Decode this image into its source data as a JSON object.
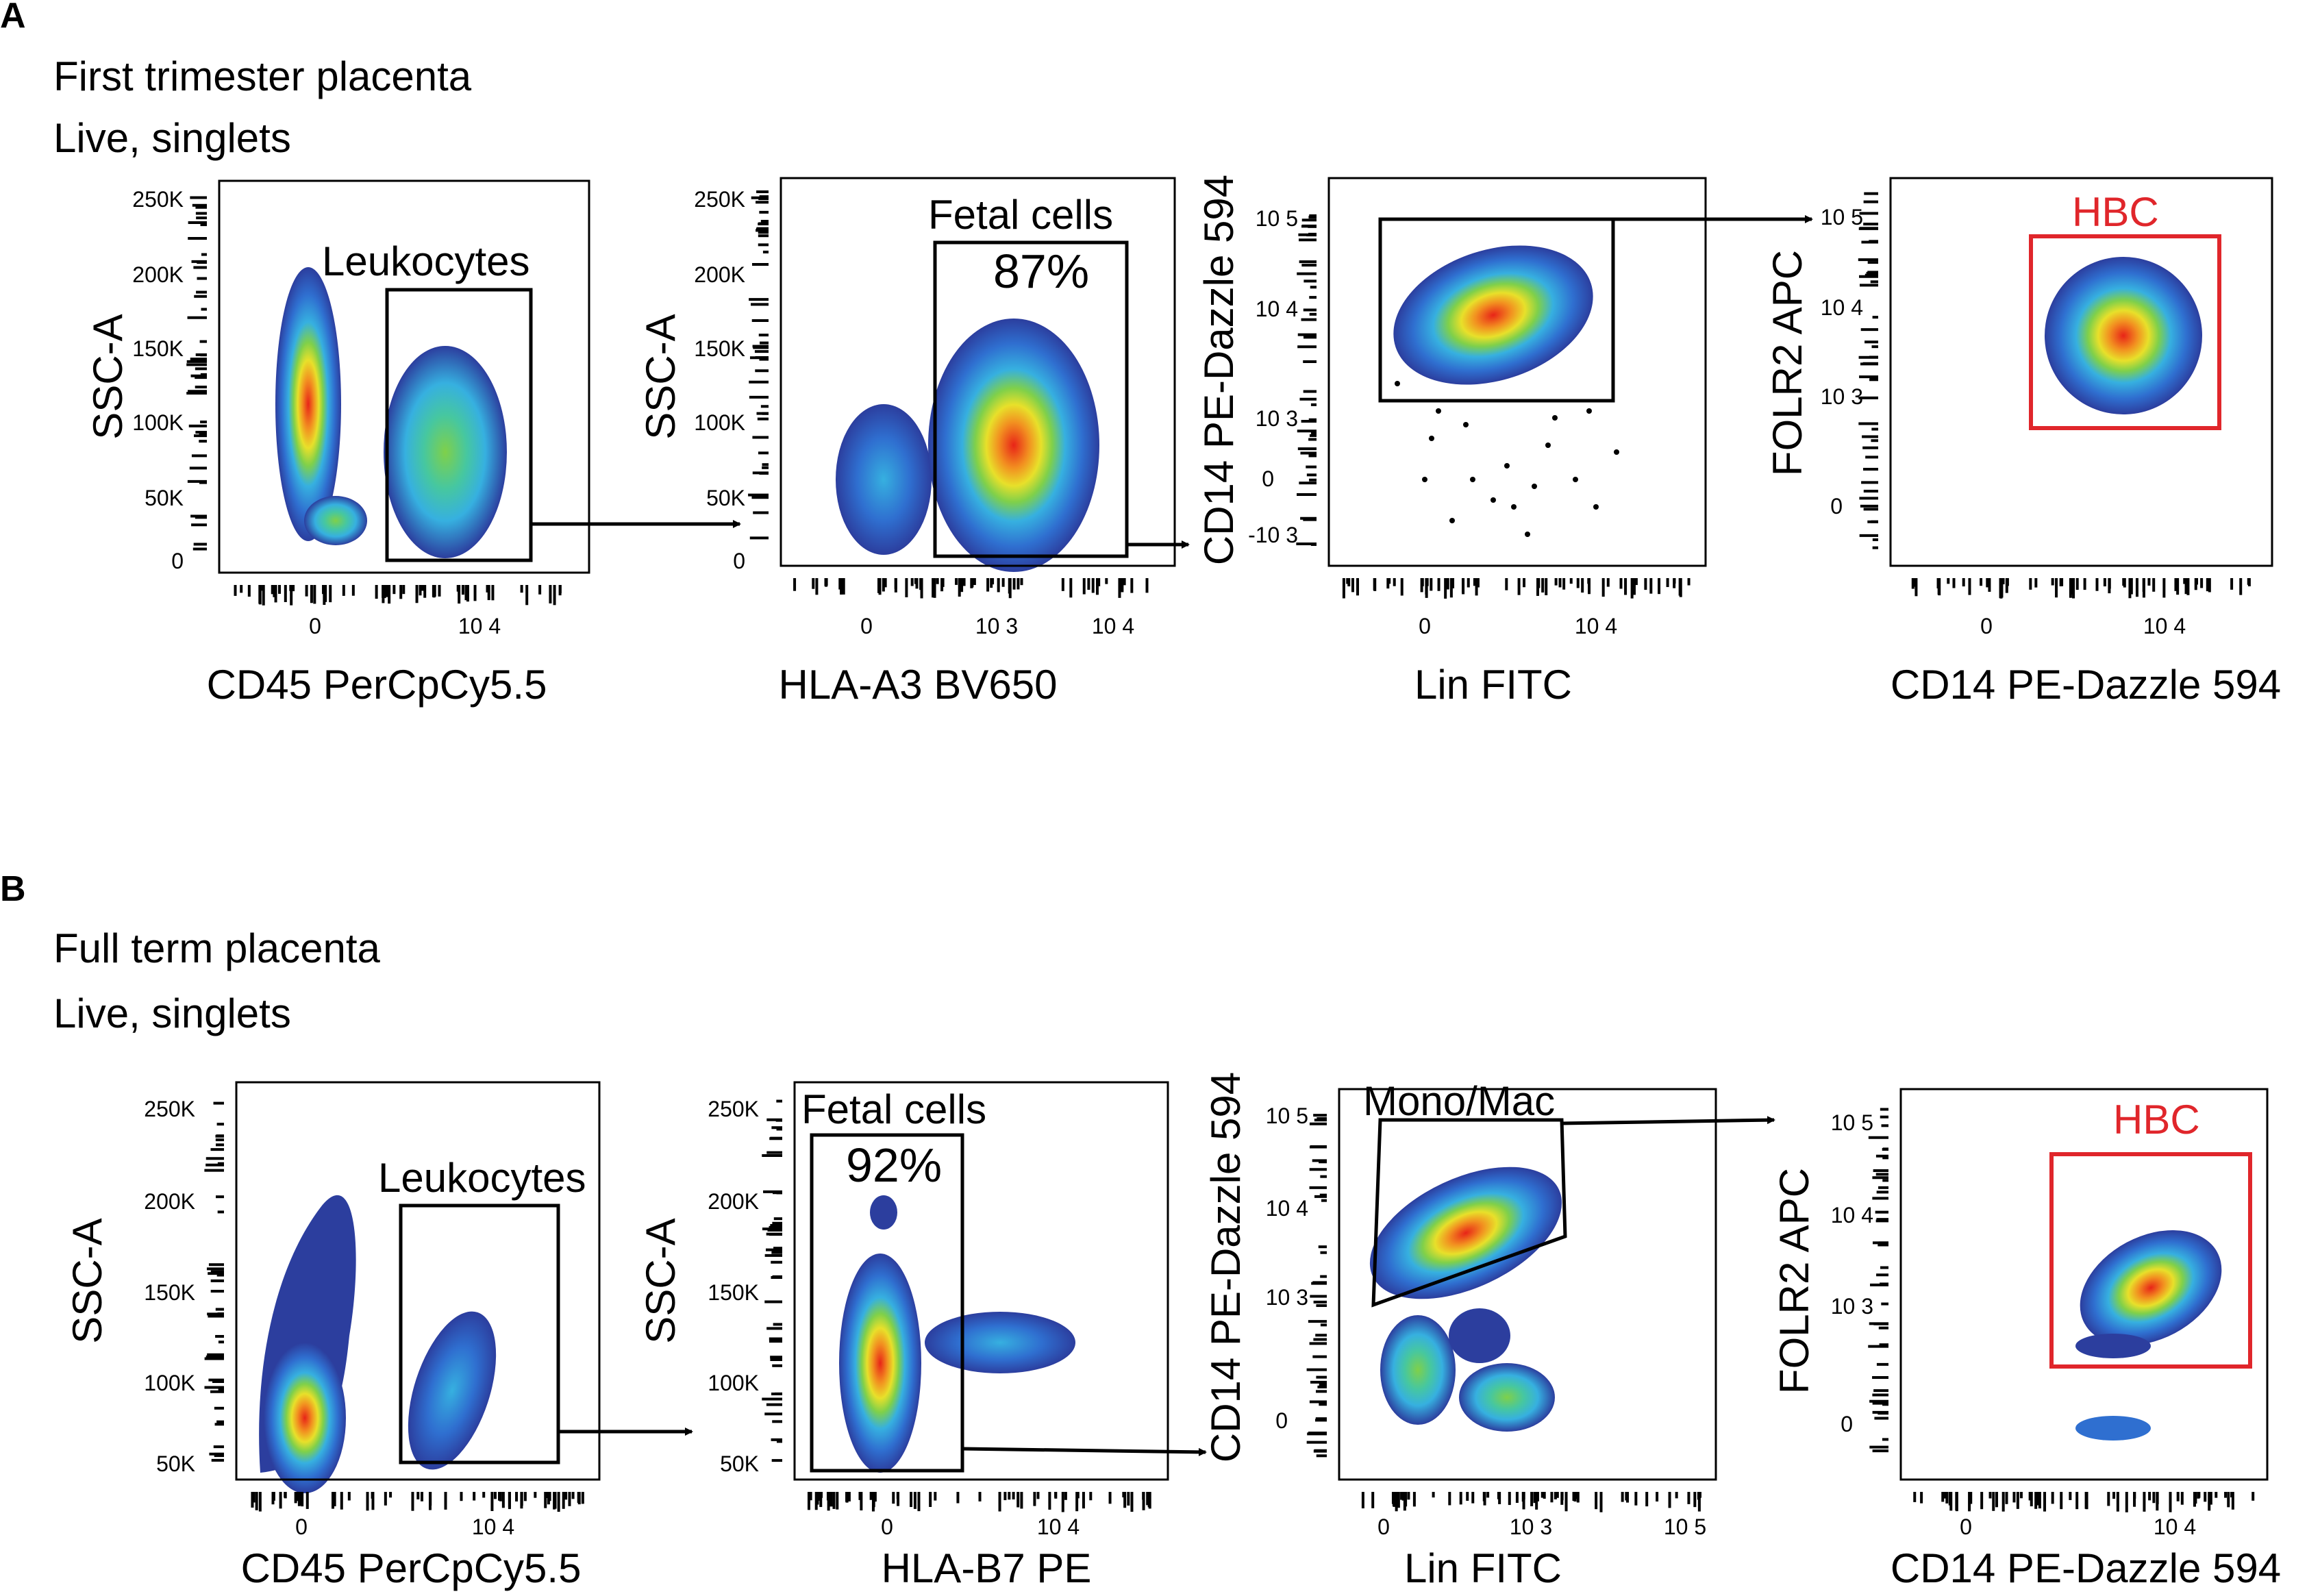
{
  "panel_a": {
    "letter": "A",
    "title_line1": "First trimester placenta",
    "title_line2": "Live, singlets",
    "plots": [
      {
        "ylabel": "SSC-A",
        "xlabel": "CD45 PerCpCy5.5",
        "yticks": [
          "250K",
          "200K",
          "150K",
          "100K",
          "50K",
          "0"
        ],
        "xticks": [
          "0",
          "10 4"
        ],
        "gate_label": "Leukocytes",
        "gate_pct": ""
      },
      {
        "ylabel": "SSC-A",
        "xlabel": "HLA-A3 BV650",
        "yticks": [
          "250K",
          "200K",
          "150K",
          "100K",
          "50K",
          "0"
        ],
        "xticks": [
          "0",
          "10 3",
          "10 4"
        ],
        "gate_label": "Fetal cells",
        "gate_pct": "87%"
      },
      {
        "ylabel": "CD14 PE-Dazzle 594",
        "xlabel": "Lin FITC",
        "yticks": [
          "10 5",
          "10 4",
          "10 3",
          "0",
          "-10 3"
        ],
        "xticks": [
          "0",
          "10 4"
        ],
        "gate_label": "",
        "gate_pct": ""
      },
      {
        "ylabel": "FOLR2 APC",
        "xlabel": "CD14 PE-Dazzle 594",
        "yticks": [
          "10 5",
          "10 4",
          "10 3",
          "0"
        ],
        "xticks": [
          "0",
          "10 4"
        ],
        "gate_label": "HBC",
        "gate_pct": ""
      }
    ]
  },
  "panel_b": {
    "letter": "B",
    "title_line1": "Full term placenta",
    "title_line2": "Live, singlets",
    "plots": [
      {
        "ylabel": "SSC-A",
        "xlabel": "CD45 PerCpCy5.5",
        "yticks": [
          "250K",
          "200K",
          "150K",
          "100K",
          "50K"
        ],
        "xticks": [
          "0",
          "10 4"
        ],
        "gate_label": "Leukocytes",
        "gate_pct": ""
      },
      {
        "ylabel": "SSC-A",
        "xlabel": "HLA-B7 PE",
        "yticks": [
          "250K",
          "200K",
          "150K",
          "100K",
          "50K"
        ],
        "xticks": [
          "0",
          "10 4"
        ],
        "gate_label": "Fetal cells",
        "gate_pct": "92%"
      },
      {
        "ylabel": "CD14 PE-Dazzle 594",
        "xlabel": "Lin FITC",
        "yticks": [
          "10 5",
          "10 4",
          "10 3",
          "0"
        ],
        "xticks": [
          "0",
          "10 3",
          "10 5"
        ],
        "gate_label": "Mono/Mac",
        "gate_pct": ""
      },
      {
        "ylabel": "FOLR2 APC",
        "xlabel": "CD14 PE-Dazzle 594",
        "yticks": [
          "10 5",
          "10 4",
          "10 3",
          "0"
        ],
        "xticks": [
          "0",
          "10 4"
        ],
        "gate_label": "HBC",
        "gate_pct": ""
      }
    ]
  },
  "colors": {
    "axis": "#000000",
    "gate": "#000000",
    "hbc_gate": "#e0262b",
    "density": [
      "#2c3e9e",
      "#2f6fd0",
      "#36b0e0",
      "#46c7a0",
      "#7fd04a",
      "#e8e02a",
      "#f29020",
      "#e82418"
    ]
  }
}
